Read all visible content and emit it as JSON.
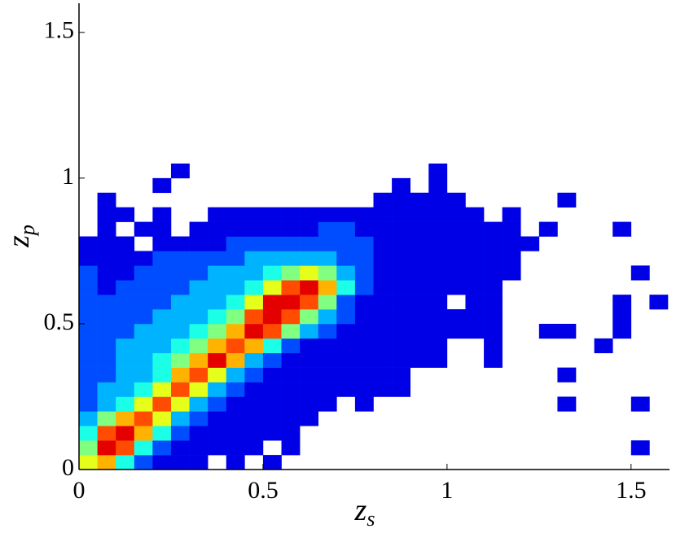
{
  "chart_data": {
    "type": "heatmap",
    "xlabel": {
      "base": "z",
      "sub": "s"
    },
    "ylabel": {
      "base": "z",
      "sub": "p"
    },
    "colormap": "jet",
    "zlim": [
      0,
      10
    ],
    "xlim": [
      0,
      1.6
    ],
    "ylim": [
      0,
      1.6
    ],
    "xticks": [
      0,
      0.5,
      1,
      1.5
    ],
    "yticks": [
      0,
      0.5,
      1,
      1.5
    ],
    "xbins": [
      0,
      0.05,
      0.1,
      0.15,
      0.2,
      0.25,
      0.3,
      0.35,
      0.4,
      0.45,
      0.5,
      0.55,
      0.6,
      0.65,
      0.7,
      0.75,
      0.8,
      0.85,
      0.9,
      0.95,
      1,
      1.05,
      1.1,
      1.15,
      1.2,
      1.25,
      1.3,
      1.35,
      1.4,
      1.45,
      1.5,
      1.55,
      1.6
    ],
    "ybins": [
      0,
      0.05,
      0.1,
      0.15,
      0.2,
      0.25,
      0.3,
      0.35,
      0.4,
      0.45,
      0.5,
      0.55,
      0.6,
      0.65,
      0.7,
      0.75,
      0.8,
      0.85,
      0.9,
      0.95,
      1,
      1.05
    ],
    "values": [
      [
        6,
        7,
        4,
        2,
        1,
        1,
        1,
        0,
        1,
        0,
        1,
        0,
        0,
        0,
        0,
        0,
        0,
        0,
        0,
        0,
        0,
        0,
        0,
        0,
        0,
        0,
        0,
        0,
        0,
        0,
        0,
        0
      ],
      [
        5,
        9,
        8,
        4,
        2,
        1,
        1,
        1,
        1,
        1,
        0,
        1,
        0,
        0,
        0,
        0,
        0,
        0,
        0,
        0,
        0,
        0,
        0,
        0,
        0,
        0,
        0,
        0,
        0,
        0,
        1,
        0
      ],
      [
        4,
        8,
        9,
        7,
        4,
        2,
        1,
        1,
        1,
        1,
        1,
        1,
        0,
        0,
        0,
        0,
        0,
        0,
        0,
        0,
        0,
        0,
        0,
        0,
        0,
        0,
        0,
        0,
        0,
        0,
        0,
        0
      ],
      [
        3,
        5,
        7,
        8,
        6,
        3,
        2,
        1,
        1,
        1,
        1,
        1,
        1,
        0,
        0,
        0,
        0,
        0,
        0,
        0,
        0,
        0,
        0,
        0,
        0,
        0,
        0,
        0,
        0,
        0,
        0,
        0
      ],
      [
        2,
        3,
        4,
        6,
        8,
        6,
        3,
        2,
        1,
        1,
        1,
        1,
        1,
        1,
        0,
        1,
        0,
        0,
        0,
        0,
        0,
        0,
        0,
        0,
        0,
        0,
        1,
        0,
        0,
        0,
        1,
        0
      ],
      [
        2,
        3,
        3,
        4,
        6,
        8,
        6,
        3,
        2,
        1,
        1,
        1,
        1,
        1,
        1,
        1,
        1,
        1,
        0,
        0,
        0,
        0,
        0,
        0,
        0,
        0,
        0,
        0,
        0,
        0,
        0,
        0
      ],
      [
        2,
        2,
        3,
        3,
        4,
        7,
        8,
        6,
        3,
        2,
        1,
        1,
        1,
        1,
        1,
        1,
        1,
        1,
        0,
        0,
        0,
        0,
        0,
        0,
        0,
        0,
        1,
        0,
        0,
        0,
        0,
        0
      ],
      [
        2,
        2,
        3,
        3,
        4,
        5,
        7,
        9,
        7,
        3,
        2,
        1,
        1,
        1,
        1,
        1,
        1,
        1,
        1,
        1,
        0,
        0,
        1,
        0,
        0,
        0,
        0,
        0,
        0,
        0,
        0,
        0
      ],
      [
        2,
        2,
        3,
        3,
        3,
        4,
        5,
        7,
        8,
        7,
        4,
        2,
        1,
        1,
        1,
        1,
        1,
        1,
        1,
        1,
        0,
        0,
        1,
        0,
        0,
        0,
        0,
        0,
        1,
        0,
        0,
        0
      ],
      [
        2,
        2,
        2,
        3,
        3,
        3,
        4,
        5,
        7,
        9,
        8,
        5,
        3,
        2,
        1,
        1,
        1,
        1,
        1,
        1,
        1,
        1,
        1,
        0,
        0,
        1,
        1,
        0,
        0,
        1,
        0,
        0
      ],
      [
        2,
        2,
        2,
        2,
        3,
        3,
        3,
        4,
        5,
        8,
        9,
        8,
        5,
        3,
        2,
        1,
        1,
        1,
        1,
        1,
        1,
        1,
        1,
        0,
        0,
        0,
        0,
        0,
        0,
        1,
        0,
        0
      ],
      [
        2,
        2,
        2,
        2,
        2,
        3,
        3,
        3,
        4,
        6,
        9,
        9,
        8,
        5,
        2,
        1,
        1,
        1,
        1,
        1,
        0,
        1,
        1,
        0,
        0,
        0,
        0,
        0,
        0,
        1,
        0,
        1
      ],
      [
        2,
        1,
        2,
        2,
        2,
        2,
        3,
        3,
        3,
        4,
        6,
        8,
        9,
        7,
        4,
        2,
        1,
        1,
        1,
        1,
        1,
        1,
        1,
        0,
        0,
        0,
        0,
        0,
        0,
        0,
        0,
        0
      ],
      [
        2,
        1,
        1,
        2,
        2,
        2,
        2,
        3,
        3,
        3,
        4,
        5,
        6,
        5,
        3,
        2,
        1,
        1,
        1,
        1,
        1,
        1,
        1,
        1,
        0,
        0,
        0,
        0,
        0,
        0,
        1,
        0
      ],
      [
        1,
        1,
        1,
        1,
        2,
        2,
        2,
        2,
        2,
        3,
        3,
        3,
        3,
        3,
        2,
        2,
        1,
        1,
        1,
        1,
        1,
        1,
        1,
        1,
        0,
        0,
        0,
        0,
        0,
        0,
        0,
        0
      ],
      [
        1,
        1,
        1,
        0,
        1,
        1,
        1,
        1,
        2,
        2,
        2,
        2,
        2,
        2,
        2,
        2,
        1,
        1,
        1,
        1,
        1,
        1,
        1,
        1,
        1,
        0,
        0,
        0,
        0,
        0,
        0,
        0
      ],
      [
        0,
        1,
        0,
        1,
        1,
        0,
        1,
        1,
        1,
        1,
        1,
        1,
        1,
        2,
        2,
        1,
        1,
        1,
        1,
        1,
        1,
        1,
        1,
        1,
        0,
        1,
        0,
        0,
        0,
        1,
        0,
        0
      ],
      [
        0,
        1,
        1,
        0,
        1,
        0,
        0,
        1,
        1,
        1,
        1,
        1,
        1,
        1,
        1,
        1,
        1,
        1,
        1,
        1,
        1,
        1,
        0,
        1,
        0,
        0,
        0,
        0,
        0,
        0,
        0,
        0
      ],
      [
        0,
        1,
        0,
        0,
        0,
        0,
        0,
        0,
        0,
        0,
        0,
        0,
        0,
        0,
        0,
        0,
        1,
        1,
        1,
        1,
        1,
        0,
        0,
        0,
        0,
        0,
        1,
        0,
        0,
        0,
        0,
        0
      ],
      [
        0,
        0,
        0,
        0,
        1,
        0,
        0,
        0,
        0,
        0,
        0,
        0,
        0,
        0,
        0,
        0,
        0,
        1,
        0,
        1,
        0,
        0,
        0,
        0,
        0,
        0,
        0,
        0,
        0,
        0,
        0,
        0
      ],
      [
        0,
        0,
        0,
        0,
        0,
        1,
        0,
        0,
        0,
        0,
        0,
        0,
        0,
        0,
        0,
        0,
        0,
        0,
        0,
        1,
        0,
        0,
        0,
        0,
        0,
        0,
        0,
        0,
        0,
        0,
        0,
        0
      ]
    ]
  }
}
